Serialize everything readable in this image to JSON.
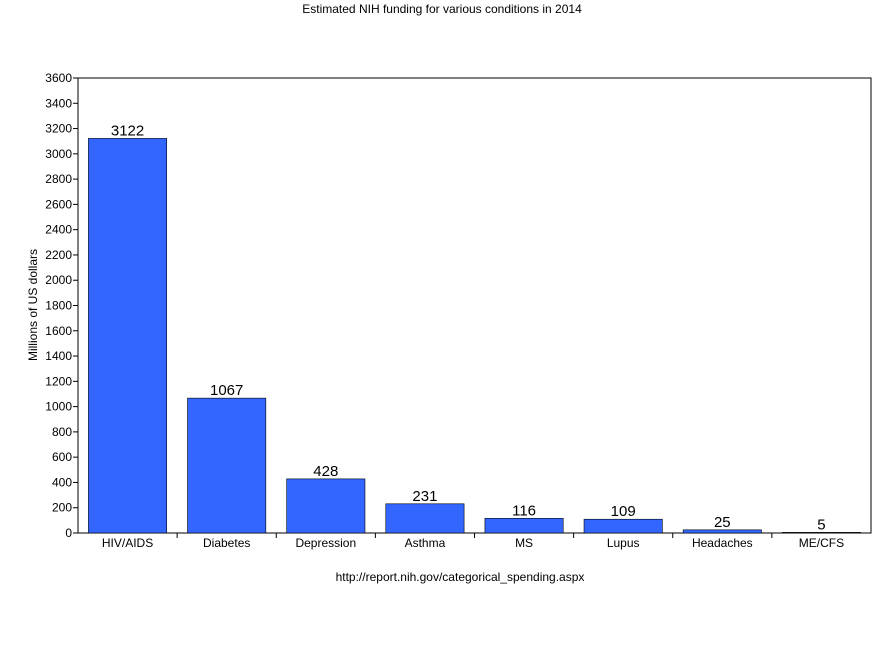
{
  "chart_data": {
    "type": "bar",
    "title": "Estimated NIH funding for various conditions in 2014",
    "ylabel": "Millions of US dollars",
    "xlabel": "http://report.nih.gov/categorical_spending.aspx",
    "categories": [
      "HIV/AIDS",
      "Diabetes",
      "Depression",
      "Asthma",
      "MS",
      "Lupus",
      "Headaches",
      "ME/CFS"
    ],
    "values": [
      3122,
      1067,
      428,
      231,
      116,
      109,
      25,
      5
    ],
    "data_labels": [
      "3122",
      "1067",
      "428",
      "231",
      "116",
      "109",
      "25",
      "5"
    ],
    "ylim": [
      0,
      3600
    ],
    "yticks": [
      "0",
      "200",
      "400",
      "600",
      "800",
      "1000",
      "1200",
      "1400",
      "1600",
      "1800",
      "2000",
      "2200",
      "2400",
      "2600",
      "2800",
      "3000",
      "3200",
      "3400",
      "3600"
    ],
    "grid": false,
    "bar_color": "#3366FF"
  }
}
